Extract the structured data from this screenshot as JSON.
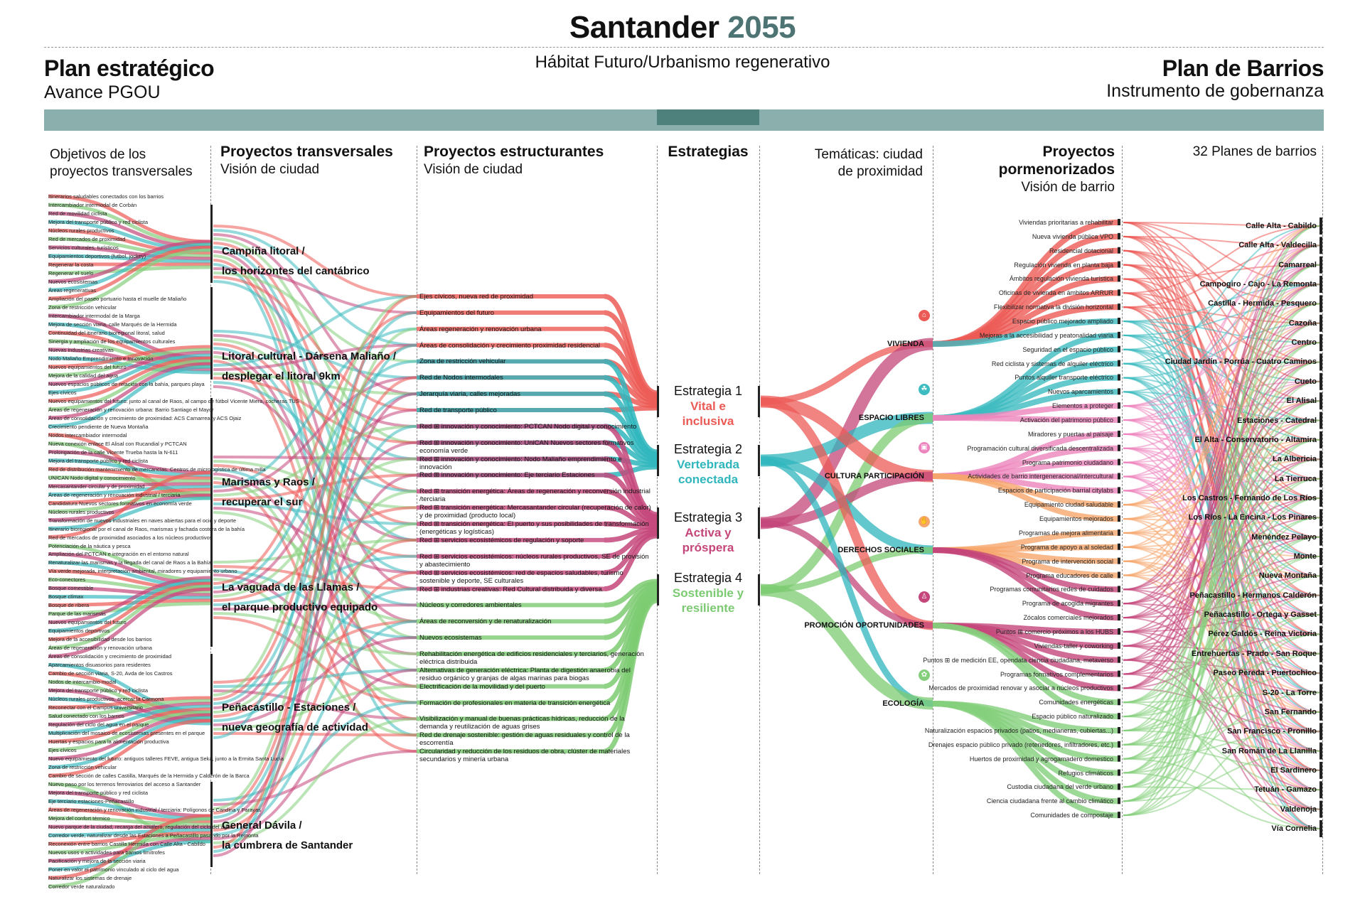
{
  "header": {
    "title_main": "Santander",
    "title_year": "2055",
    "subtitle": "Hábitat Futuro/Urbanismo regenerativo",
    "left_title": "Plan estratégico",
    "left_sub": "Avance PGOU",
    "right_title": "Plan de Barrios",
    "right_sub": "Instrumento de gobernanza"
  },
  "columns": {
    "col1_a": "Objetivos de los",
    "col1_b": "proyectos transversales",
    "col2_title": "Proyectos transversales",
    "col2_sub": "Visión de ciudad",
    "col3_title": "Proyectos estructurantes",
    "col3_sub": "Visión de ciudad",
    "col4_title": "Estrategias",
    "col5_a": "Temáticas: ciudad",
    "col5_b": "de proximidad",
    "col6_a": "Proyectos",
    "col6_b": "pormenorizados",
    "col6_c": "Visión de barrio",
    "col7_title": "32 Planes de barrios"
  },
  "colors": {
    "red": "#ec5a55",
    "teal": "#3cbcc0",
    "magenta": "#c4467a",
    "green": "#85cf7c",
    "orange": "#f6a66c",
    "pink": "#ee84bd"
  },
  "objetivos": [
    "Itinerarios saludables conectados con los barrios",
    "Intercambiador intermodal de Corbán",
    "Red de movilidad ciclista",
    "Mejora del transporte público y red ciclista",
    "Núcleos rurales productivos",
    "Red de mercados de proximidad",
    "Servicios culturales, turísticos",
    "Equipamientos deportivos (futbol, jockey)",
    "Regenerar la costa",
    "Regenerar el suelo",
    "Nuevos ecosistemas",
    "Áreas regenerativas",
    "Ampliación del paseo portuario hasta el muelle de Maliaño",
    "Zona de restricción vehicular",
    "Intercambiador intermodal de la Marga",
    "Mejora de sección viaria, calle Marqués de la Hermida",
    "Continuidad del itinerario bioregional litoral, salud",
    "Sinergia y ampliación de los equipamientos culturales",
    "Nuevas industrias creativas",
    "Nodo Maliaño Emprendimiento e Innovación",
    "Nuevos equipamientos del futuro",
    "Mejora de la calidad del agua",
    "Nuevos espacios públicos de relación con la bahía, parques playa",
    "Ejes cívicos",
    "Nuevos equipamientos del futuro: junto al canal de Raos, al campo de fútbol Vicente Miera, cocheras TUS",
    "Áreas de regeneración y renovación urbana: Barrio Santiago el Mayor",
    "Áreas de consolidación y crecimiento de proximidad: ACS Camarreal y ACS Ojaiz",
    "Crecimiento pendiente de Nueva Montaña",
    "Nodos intercambiador intermodal",
    "Nueva conexión enlace El Alisal con Rucandial y PCTCAN",
    "Prolongación de la calle Vicente Trueba hasta la N-611",
    "Mejora del transporte público y red ciclista",
    "Red de distribución mantenimiento de mercancías. Centros de micrologística de última milla",
    "UNICAN Nodo digital y conocimiento",
    "Mercasantander circular y de proximidad",
    "Áreas de regeneración y renovación industrial / terciaria",
    "Candidatura Nuevos sectores formativos en economía verde",
    "Núcleos rurales productivos",
    "Transformación de nuevos industriales en naves abiertas para el ocio y deporte",
    "Itinerario bioregional por el canal de Raos, marismas y fachada costera de la bahía",
    "Red de mercados de proximidad asociados a los núcleos productivos",
    "Potenciación de la náutica y pesca",
    "Ampliación del PCTCAN e integración en el entorno natural",
    "Renaturalizar las marismas y la llegada del canal de Raos a la Bahía",
    "Vía verde mejorada, interpretación ambiental, miradores y equipamiento urbano",
    "Eco-conectores",
    "Bosque comestible",
    "Bosque clímax",
    "Bosque de ribera",
    "Parque de las marismas",
    "Nuevos equipamientos del futuro",
    "Equipamientos deportivos",
    "Mejora de la accesibilidad desde los barrios",
    "Áreas de regeneración y renovación urbana",
    "Áreas de consolidación y crecimiento de proximidad",
    "Aparcamientos disuasorios para residentes",
    "Cambio de sección viaria, S-20, Avda de los Castros",
    "Nodos de intercambio modal",
    "Mejora del transporte público y red ciclista",
    "Núcleos rurales productivos, acercar la Carmona",
    "Reconectar con el Campus universitario",
    "Salud conectado con los barrios",
    "Regulación del ciclo del agua en el parque",
    "Multiplicación del mosaico de ecosistemas presentes en el parque",
    "Huertas y espacios para la alimentación productiva",
    "Ejes cívicos",
    "Nuevo equipamiento del futuro: antiguos talleres FEVE, antigua Seka, junto a la Ermita Santa Lucía",
    "Zona de restricción vehicular",
    "Cambio de sección de calles Castilla, Marqués de la Hermida y Calderón de la Barca",
    "Nuevo paso por los terrenos ferroviarios del acceso a Santander",
    "Mejora del transporte público y red ciclista",
    "Eje terciario estaciones-Peñacastillo",
    "Áreas de regeneración y renovación industrial / terciaria: Polígonos de Candina y Parayas",
    "Mejora del confort térmico",
    "Nuevo parque de la ciudad, recarga del acuífero, regulación del ciclo del agua",
    "Corredor verde, naturalizar desde las Estaciones a Peñacastillo pasando por la Remonta",
    "Reconexión entre barrios Castilla Hermida con Calle Alta - Cabildo",
    "Nuevos usos o actividades para barrios limítrofes",
    "Pacificación y mejora de la sección viaria",
    "Poner en valor el patrimonio vinculado al ciclo del agua",
    "Naturalizar los sistemas de drenaje",
    "Corredor verde naturalizado"
  ],
  "transversales": [
    {
      "l1": "Campiña litoral /",
      "l2": "los horizontes del cantábrico"
    },
    {
      "l1": "Litoral cultural - Dársena Maliaño /",
      "l2": "desplegar el litoral 9km"
    },
    {
      "l1": "Marismas y Raos /",
      "l2": "recuperar el sur"
    },
    {
      "l1": "La vaguada de las Llamas /",
      "l2": "el parque productivo equipado"
    },
    {
      "l1": "Peñacastillo - Estaciones /",
      "l2": "nueva geografía de actividad"
    },
    {
      "l1": "General Dávila /",
      "l2": "la cumbrera de Santander"
    }
  ],
  "estructurantes": [
    "Ejes cívicos, nueva red de proximidad",
    "Equipamientos del futuro",
    "Áreas regeneración y renovación urbana",
    "Áreas de consolidación y crecimiento proximidad residencial",
    "Zona de restricción vehicular",
    "Red de Nodos intermodales",
    "Jerarquía viaria, calles mejoradas",
    "Red de transporte público",
    "Red ⊞ innovación y conocimiento: PCTCAN Nodo digital y conocimiento",
    "Red ⊞ innovación y conocimiento: UniCAN Nuevos sectores formativos economía verde",
    "Red ⊞ innovación y conocimiento: Nodo Maliaño emprendimiento e innovación",
    "Red ⊞ innovación y conocimiento: Eje terciario Estaciones",
    "Red ⊞ transición energética: Áreas de regeneración y reconversión industrial /terciaria",
    "Red ⊞ transición energética: Mercasantander circular (recuperación de calor) y de proximidad (producto local)",
    "Red ⊞ transición energética: El puerto y sus posibilidades de transformación (energéticas y logísticas)",
    "Red ⊞ servicios ecosistémicos de regulación y soporte",
    "Red ⊞ servicios ecosistémicos: núcleos rurales productivos, SE de provisión y abastecimiento",
    "Red ⊞ servicios ecosistémicos: red de espacios saludables, turismo sostenible y deporte, SE culturales",
    "Red ⊞ industrias creativas: Red Cultural distribuida y diversa.",
    "Núcleos y corredores ambientales",
    "Áreas de reconversión y de renaturalización",
    "Nuevos ecosistemas",
    "Rehabilitación energética de edificios residenciales y terciarios, generación eléctrica distribuida",
    "Alternativas de generación eléctrica: Planta de digestión anaerobia del residuo orgánico y granjas de algas marinas para biogas",
    "Electrificación de la movilidad y del puerto",
    "Formación de profesionales en materia de transición energética",
    "Visibilización y manual de buenas prácticas hídricas, reducción de la demanda y reutilización de aguas grises",
    "Red de drenaje sostenible: gestión de aguas residuales y control de la escorrentía",
    "Circularidad y reducción de los residuos de obra, clúster de materiales secundarios y minería urbana"
  ],
  "estrategias": [
    {
      "label": "Estrategia 1",
      "name1": "Vital e",
      "name2": "inclusiva",
      "color": "#ec5a55"
    },
    {
      "label": "Estrategia 2",
      "name1": "Vertebrada",
      "name2": "conectada",
      "color": "#2fb6bd"
    },
    {
      "label": "Estrategia 3",
      "name1": "Activa y",
      "name2": "próspera",
      "color": "#c4467a"
    },
    {
      "label": "Estrategia 4",
      "name1": "Sostenible y",
      "name2": "resiliente",
      "color": "#7ccb72"
    }
  ],
  "tematicas": [
    {
      "name": "VIVIENDA",
      "icon": "⌂",
      "color": "#ec5a55"
    },
    {
      "name": "ESPACIO LIBRES",
      "icon": "☘",
      "color": "#3cbcc0"
    },
    {
      "name": "CULTURA PARTICIPACIÓN",
      "icon": "▣",
      "color": "#ee84bd"
    },
    {
      "name": "DERECHOS SOCIALES",
      "icon": "✋",
      "color": "#f6a66c"
    },
    {
      "name": "PROMOCIÓN OPORTUNIDADES",
      "icon": "♙",
      "color": "#c4467a"
    },
    {
      "name": "ECOLOGÍA",
      "icon": "✿",
      "color": "#85cf7c"
    }
  ],
  "pormenorizados": [
    "Viviendas prioritarias a rehabilitar",
    "Nueva vivienda pública VPO",
    "Residencial dotacional",
    "Regulación vivienda en planta baja",
    "Ámbitos regulación vivienda turística",
    "Oficinas de vivienda en ámbitos ARRUR",
    "Flexibilizar normativa la división horizontal",
    "Espacio público mejorado ampliado",
    "Mejoras a la accesibilidad y peatonalidad viaria",
    "Seguridad en el espacio público",
    "Red ciclista y sistemas de alquiler eléctrico",
    "Puntos alquiler transporte eléctrico",
    "Nuevos aparcamientos",
    "Elementos a proteger",
    "Activación del patrimonio público",
    "Miradores y puertas al paisaje",
    "Programación cultural diversificada descentralizada",
    "Programa patrimonio ciudadano",
    "Actividades de barrio intergeneracional/intercultural",
    "Espacios de participación barrial citylabs",
    "Equipamiento ciudad saludable",
    "Equipamientos mejorados",
    "Programas de mejora alimentaria",
    "Programa de apoyo a al soledad",
    "Programa de intervención social",
    "Programa educadores de calle",
    "Programas comunitarios redes de cuidados",
    "Programa de acogida migrantes",
    "Zócalos comerciales mejorados",
    "Puntos ⊞ comercio próximos a los HUBS",
    "Viviendas-taller y coworking",
    "Puntos ⊞ de medición EE, opendata ciencia ciudadana, metaverso",
    "Programas formativos complementarios",
    "Mercados de proximidad renovar y asociar a núcleos productivos",
    "Comunidades energéticas",
    "Espacio público naturalizado",
    "Naturalización espacios privados (patios, medianeras, cubiertas...)",
    "Drenajes espacio público privado (retenedores, infiltradores, etc.)",
    "Huertos de proximidad y agrogamadero domestico",
    "Refugios climáticos",
    "Custodia ciudadana del verde urbano",
    "Ciencia ciudadana frente al cambio climático",
    "Comunidades de compostaje"
  ],
  "barrios": [
    "Calle Alta - Cabildo",
    "Calle Alta - Valdecilla",
    "Camarreal",
    "Campogiro - Cajo - La Remonta",
    "Castilla - Hermida - Pesquero",
    "Cazoña",
    "Centro",
    "Ciudad Jardín - Porrúa - Cuatro Caminos",
    "Cueto",
    "El Alisal",
    "Estaciones - Catedral",
    "El Alta - Conservatorio - Altamira",
    "La Albericia",
    "La Tierruca",
    "Los Castros - Fernando de Los Ríos",
    "Los Ríos - La Encina - Los Pinares",
    "Menéndez Pelayo",
    "Monte",
    "Nueva Montaña",
    "Peñacastillo - Hermanos Calderón",
    "Peñacastillo - Ortega y Gasset",
    "Pérez Galdós - Reina Victoria",
    "Entrehuertas - Prado - San Roque",
    "Paseo Pereda - Puertochico",
    "S-20 - La Torre",
    "San Fernando",
    "San Francisco - Pronillo",
    "San Román de La Llanilla",
    "El Sardinero",
    "Tetuán - Gamazo",
    "Valdenoja",
    "Vía Cornelia"
  ]
}
